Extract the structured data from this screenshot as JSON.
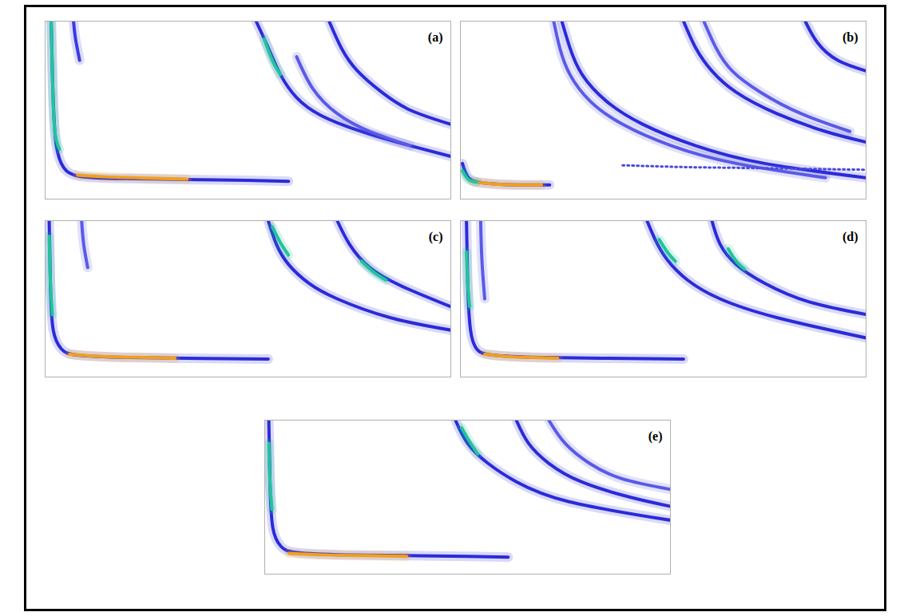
{
  "chart_data": [
    {
      "type": "line",
      "title": "(a)",
      "xlim": [
        0,
        100
      ],
      "ylim": [
        0,
        100
      ],
      "tick_labels": false,
      "series": [
        {
          "color": "#2b2bd9",
          "line_style": "solid",
          "x": [
            1.5,
            1.8,
            2.5,
            4,
            8,
            20,
            35,
            50,
            60
          ],
          "values": [
            100,
            70,
            35,
            20,
            13,
            11.5,
            11,
            10.5,
            10
          ]
        },
        {
          "color": "#22c49a",
          "line_style": "solid",
          "x": [
            1.5,
            1.8,
            2.3,
            3.5
          ],
          "values": [
            100,
            70,
            40,
            28
          ]
        },
        {
          "color": "#f0a020",
          "line_style": "solid",
          "x": [
            8,
            15,
            25,
            35
          ],
          "values": [
            13.5,
            12.5,
            11.8,
            11.2
          ]
        },
        {
          "color": "#3b3be0",
          "line_style": "solid",
          "x": [
            7,
            7.5,
            8.5
          ],
          "values": [
            100,
            90,
            78
          ]
        },
        {
          "color": "#2b2bd9",
          "line_style": "solid",
          "x": [
            52,
            55,
            58,
            62,
            68,
            78,
            90,
            100
          ],
          "values": [
            100,
            85,
            70,
            57,
            47,
            38,
            30,
            24
          ]
        },
        {
          "color": "#22c49a",
          "line_style": "solid",
          "x": [
            54,
            56,
            58
          ],
          "values": [
            90,
            78,
            70
          ]
        },
        {
          "color": "#2b2bd9",
          "line_style": "solid",
          "x": [
            70,
            73,
            77,
            83,
            90,
            100
          ],
          "values": [
            100,
            85,
            72,
            60,
            50,
            42
          ]
        },
        {
          "color": "#5a5ae8",
          "line_style": "solid",
          "x": [
            62,
            66,
            72,
            80,
            90
          ],
          "values": [
            80,
            62,
            48,
            38,
            30
          ]
        }
      ]
    },
    {
      "type": "line",
      "title": "(b)",
      "xlim": [
        0,
        100
      ],
      "ylim": [
        0,
        100
      ],
      "tick_labels": false,
      "series": [
        {
          "color": "#2b2bd9",
          "line_style": "solid",
          "x": [
            0.5,
            2,
            6,
            14,
            22
          ],
          "values": [
            20,
            12,
            9,
            8,
            8
          ]
        },
        {
          "color": "#f0a020",
          "line_style": "solid",
          "x": [
            3,
            8,
            14,
            20
          ],
          "values": [
            10,
            8.5,
            8,
            8
          ]
        },
        {
          "color": "#22c49a",
          "line_style": "solid",
          "x": [
            0.5,
            2,
            4
          ],
          "values": [
            16,
            11,
            9.5
          ]
        },
        {
          "color": "#2b2bd9",
          "line_style": "solid",
          "x": [
            25,
            27,
            30,
            36,
            45,
            58,
            75,
            100
          ],
          "values": [
            100,
            85,
            70,
            55,
            42,
            30,
            20,
            12
          ]
        },
        {
          "color": "#5a5ae8",
          "line_style": "solid",
          "x": [
            23,
            24.5,
            27,
            32,
            40,
            52,
            68,
            90
          ],
          "values": [
            100,
            85,
            70,
            55,
            42,
            30,
            20,
            12
          ]
        },
        {
          "color": "#2b2bd9",
          "line_style": "solid",
          "x": [
            55,
            58,
            62,
            68,
            78,
            90,
            100
          ],
          "values": [
            100,
            85,
            72,
            60,
            48,
            38,
            32
          ]
        },
        {
          "color": "#5a5ae8",
          "line_style": "solid",
          "x": [
            60,
            63,
            67,
            74,
            84,
            96
          ],
          "values": [
            100,
            85,
            72,
            60,
            48,
            38
          ]
        },
        {
          "color": "#2b2bd9",
          "line_style": "solid",
          "x": [
            85,
            88,
            93,
            100
          ],
          "values": [
            100,
            88,
            78,
            72
          ]
        },
        {
          "color": "#4a4ae0",
          "line_style": "dotted",
          "x": [
            40,
            55,
            70,
            85,
            100
          ],
          "values": [
            19,
            18,
            17.5,
            17,
            16.5
          ]
        }
      ]
    },
    {
      "type": "line",
      "title": "(c)",
      "xlim": [
        0,
        100
      ],
      "ylim": [
        0,
        100
      ],
      "tick_labels": false,
      "series": [
        {
          "color": "#2b2bd9",
          "line_style": "solid",
          "x": [
            1,
            1.3,
            2,
            4,
            8,
            20,
            35,
            55
          ],
          "values": [
            100,
            60,
            30,
            18,
            14,
            12.5,
            12,
            11.5
          ]
        },
        {
          "color": "#22c49a",
          "line_style": "solid",
          "x": [
            1,
            1.3,
            1.8
          ],
          "values": [
            90,
            60,
            40
          ]
        },
        {
          "color": "#f0a020",
          "line_style": "solid",
          "x": [
            6,
            15,
            25,
            32
          ],
          "values": [
            14.5,
            13,
            12.5,
            12
          ]
        },
        {
          "color": "#5a5ae8",
          "line_style": "solid",
          "x": [
            9,
            9.5,
            10.5
          ],
          "values": [
            100,
            85,
            70
          ]
        },
        {
          "color": "#2b2bd9",
          "line_style": "solid",
          "x": [
            55,
            57,
            60,
            65,
            72,
            85,
            100
          ],
          "values": [
            100,
            85,
            72,
            60,
            50,
            38,
            30
          ]
        },
        {
          "color": "#22c49a",
          "line_style": "solid",
          "x": [
            56,
            58,
            60
          ],
          "values": [
            96,
            86,
            78
          ]
        },
        {
          "color": "#2b2bd9",
          "line_style": "solid",
          "x": [
            72,
            75,
            80,
            88,
            100
          ],
          "values": [
            100,
            85,
            70,
            58,
            45
          ]
        },
        {
          "color": "#22c49a",
          "line_style": "solid",
          "x": [
            78,
            81,
            84
          ],
          "values": [
            74,
            67,
            62
          ]
        }
      ]
    },
    {
      "type": "line",
      "title": "(d)",
      "xlim": [
        0,
        100
      ],
      "ylim": [
        0,
        100
      ],
      "tick_labels": false,
      "series": [
        {
          "color": "#2b2bd9",
          "line_style": "solid",
          "x": [
            1.5,
            1.8,
            2.5,
            4,
            8,
            20,
            35,
            55
          ],
          "values": [
            100,
            60,
            30,
            18,
            14,
            12.5,
            12,
            11.5
          ]
        },
        {
          "color": "#22c49a",
          "line_style": "solid",
          "x": [
            1.5,
            1.8,
            2.3
          ],
          "values": [
            80,
            60,
            45
          ]
        },
        {
          "color": "#f0a020",
          "line_style": "solid",
          "x": [
            6,
            12,
            18,
            24
          ],
          "values": [
            14.5,
            13,
            12.5,
            12
          ]
        },
        {
          "color": "#5a5ae8",
          "line_style": "solid",
          "x": [
            5,
            5.3,
            6
          ],
          "values": [
            100,
            75,
            50
          ]
        },
        {
          "color": "#2b2bd9",
          "line_style": "solid",
          "x": [
            46,
            48,
            51,
            56,
            64,
            78,
            100
          ],
          "values": [
            100,
            88,
            75,
            62,
            50,
            38,
            25
          ]
        },
        {
          "color": "#22c49a",
          "line_style": "solid",
          "x": [
            49,
            51,
            53
          ],
          "values": [
            88,
            80,
            74
          ]
        },
        {
          "color": "#2b2bd9",
          "line_style": "solid",
          "x": [
            62,
            64,
            68,
            75,
            86,
            100
          ],
          "values": [
            100,
            85,
            72,
            60,
            48,
            40
          ]
        },
        {
          "color": "#22c49a",
          "line_style": "solid",
          "x": [
            66,
            68,
            70
          ],
          "values": [
            82,
            74,
            69
          ]
        }
      ]
    },
    {
      "type": "line",
      "title": "(e)",
      "xlim": [
        0,
        100
      ],
      "ylim": [
        0,
        100
      ],
      "tick_labels": false,
      "series": [
        {
          "color": "#2b2bd9",
          "line_style": "solid",
          "x": [
            1,
            1.3,
            2,
            4,
            8,
            20,
            35,
            50,
            60
          ],
          "values": [
            100,
            60,
            30,
            18,
            14,
            12.5,
            12,
            11.5,
            11
          ]
        },
        {
          "color": "#22c49a",
          "line_style": "solid",
          "x": [
            1,
            1.3,
            1.8
          ],
          "values": [
            85,
            60,
            42
          ]
        },
        {
          "color": "#f0a020",
          "line_style": "solid",
          "x": [
            6,
            15,
            25,
            35
          ],
          "values": [
            13.5,
            12.5,
            12,
            11.5
          ]
        },
        {
          "color": "#2b2bd9",
          "line_style": "solid",
          "x": [
            47,
            50,
            55,
            62,
            75,
            100
          ],
          "values": [
            100,
            85,
            72,
            60,
            47,
            35
          ]
        },
        {
          "color": "#22c49a",
          "line_style": "solid",
          "x": [
            48.5,
            50.5,
            52.5
          ],
          "values": [
            95,
            86,
            78
          ]
        },
        {
          "color": "#2b2bd9",
          "line_style": "solid",
          "x": [
            62,
            65,
            70,
            78,
            90,
            100
          ],
          "values": [
            100,
            85,
            72,
            60,
            50,
            44
          ]
        },
        {
          "color": "#5a5ae8",
          "line_style": "solid",
          "x": [
            70,
            74,
            80,
            88,
            100
          ],
          "values": [
            100,
            85,
            72,
            62,
            55
          ]
        }
      ]
    }
  ]
}
